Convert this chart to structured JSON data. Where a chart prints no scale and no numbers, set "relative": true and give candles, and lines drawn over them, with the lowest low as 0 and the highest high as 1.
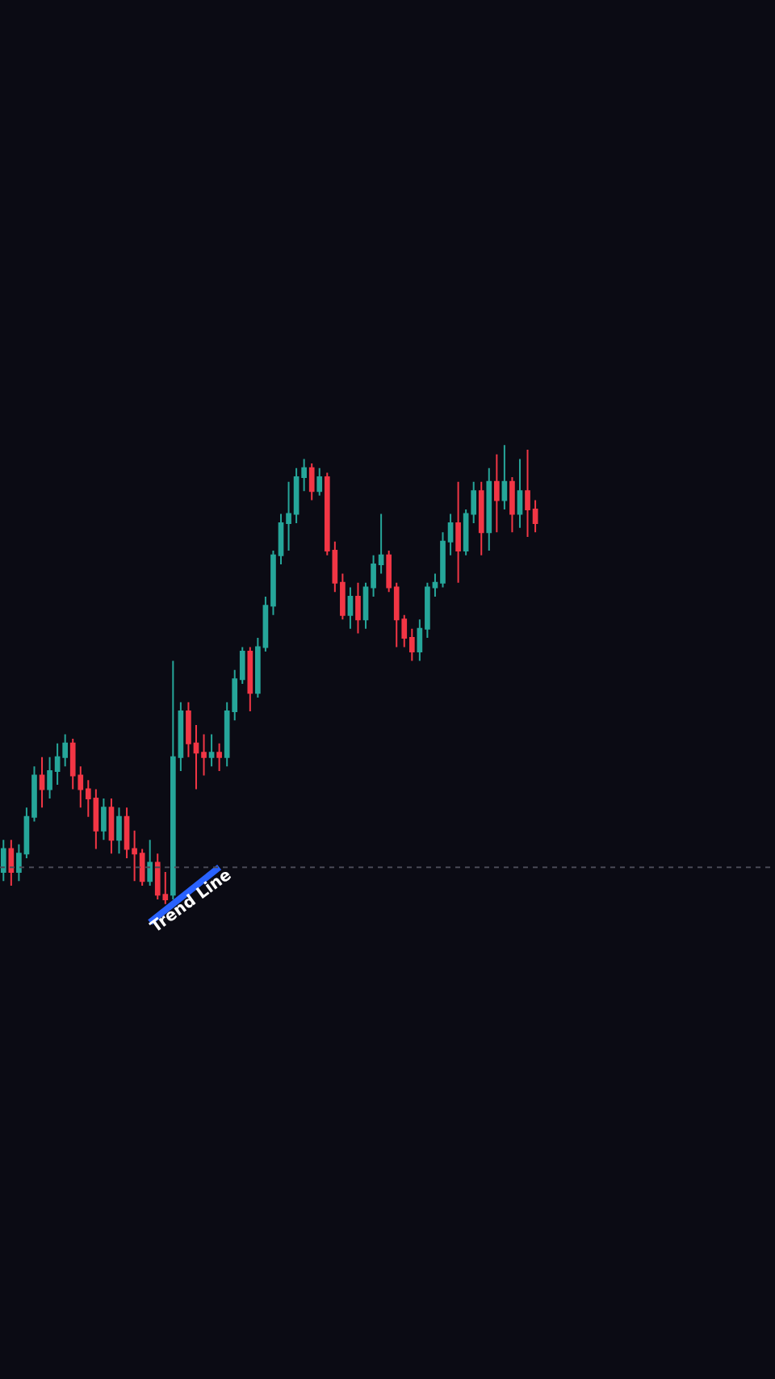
{
  "chart_data": {
    "type": "candlestick",
    "relative": true,
    "categories": [
      null,
      null,
      null,
      null,
      null,
      null,
      null,
      null,
      null,
      null,
      null,
      null,
      null,
      null,
      null,
      null,
      null,
      null,
      null,
      null,
      null,
      null,
      null,
      null,
      null,
      null,
      null,
      null,
      null,
      null,
      null,
      null,
      null,
      null,
      null,
      null,
      null,
      null,
      null,
      null,
      null,
      null,
      null,
      null,
      null,
      null,
      null,
      null,
      null,
      null,
      null,
      null,
      null,
      null,
      null,
      null,
      null,
      null,
      null,
      null,
      null,
      null,
      null,
      null,
      null,
      null,
      null,
      null,
      null,
      null
    ],
    "colors": [
      "#26a69a",
      "#f23645",
      "#26a69a",
      "#26a69a",
      "#26a69a",
      "#f23645",
      "#26a69a",
      "#26a69a",
      "#26a69a",
      "#f23645",
      "#f23645",
      "#f23645",
      "#f23645",
      "#26a69a",
      "#f23645",
      "#26a69a",
      "#f23645",
      "#f23645",
      "#f23645",
      "#26a69a",
      "#f23645",
      "#f23645",
      "#26a69a",
      "#26a69a",
      "#f23645",
      "#f23645",
      "#f23645",
      "#26a69a",
      "#f23645",
      "#26a69a",
      "#26a69a",
      "#26a69a",
      "#f23645",
      "#26a69a",
      "#26a69a",
      "#26a69a",
      "#26a69a",
      "#26a69a",
      "#26a69a",
      "#26a69a",
      "#f23645",
      "#26a69a",
      "#f23645",
      "#f23645",
      "#f23645",
      "#26a69a",
      "#f23645",
      "#26a69a",
      "#26a69a",
      "#26a69a",
      "#f23645",
      "#f23645",
      "#f23645",
      "#f23645",
      "#26a69a",
      "#26a69a",
      "#26a69a",
      "#26a69a",
      "#26a69a",
      "#f23645",
      "#26a69a",
      "#26a69a",
      "#f23645",
      "#26a69a",
      "#f23645",
      "#26a69a",
      "#f23645",
      "#26a69a",
      "#f23645",
      "#f23645"
    ],
    "ohlc": [
      [
        0.07,
        0.14,
        0.05,
        0.12
      ],
      [
        0.12,
        0.14,
        0.04,
        0.07
      ],
      [
        0.07,
        0.13,
        0.05,
        0.11
      ],
      [
        0.11,
        0.21,
        0.1,
        0.19
      ],
      [
        0.19,
        0.3,
        0.18,
        0.28
      ],
      [
        0.28,
        0.32,
        0.21,
        0.25
      ],
      [
        0.25,
        0.32,
        0.23,
        0.29
      ],
      [
        0.29,
        0.35,
        0.26,
        0.32
      ],
      [
        0.32,
        0.37,
        0.3,
        0.35
      ],
      [
        0.35,
        0.36,
        0.25,
        0.28
      ],
      [
        0.28,
        0.3,
        0.21,
        0.25
      ],
      [
        0.25,
        0.27,
        0.19,
        0.23
      ],
      [
        0.23,
        0.25,
        0.12,
        0.16
      ],
      [
        0.16,
        0.23,
        0.14,
        0.21
      ],
      [
        0.21,
        0.23,
        0.11,
        0.14
      ],
      [
        0.14,
        0.21,
        0.11,
        0.19
      ],
      [
        0.19,
        0.21,
        0.1,
        0.12
      ],
      [
        0.12,
        0.16,
        0.05,
        0.11
      ],
      [
        0.11,
        0.12,
        0.04,
        0.05
      ],
      [
        0.05,
        0.14,
        0.04,
        0.09
      ],
      [
        0.09,
        0.11,
        0.01,
        0.02
      ],
      [
        0.02,
        0.07,
        0,
        0.01
      ],
      [
        0.02,
        0.53,
        0.01,
        0.32
      ],
      [
        0.32,
        0.44,
        0.29,
        0.42
      ],
      [
        0.42,
        0.44,
        0.32,
        0.35
      ],
      [
        0.35,
        0.39,
        0.25,
        0.33
      ],
      [
        0.33,
        0.37,
        0.28,
        0.32
      ],
      [
        0.32,
        0.37,
        0.3,
        0.33
      ],
      [
        0.33,
        0.35,
        0.29,
        0.32
      ],
      [
        0.32,
        0.44,
        0.3,
        0.42
      ],
      [
        0.42,
        0.51,
        0.4,
        0.49
      ],
      [
        0.49,
        0.56,
        0.48,
        0.55
      ],
      [
        0.55,
        0.56,
        0.42,
        0.46
      ],
      [
        0.46,
        0.58,
        0.45,
        0.56
      ],
      [
        0.56,
        0.67,
        0.55,
        0.65
      ],
      [
        0.65,
        0.77,
        0.63,
        0.76
      ],
      [
        0.76,
        0.85,
        0.74,
        0.83
      ],
      [
        0.83,
        0.92,
        0.77,
        0.85
      ],
      [
        0.85,
        0.95,
        0.83,
        0.93
      ],
      [
        0.93,
        0.97,
        0.9,
        0.95
      ],
      [
        0.95,
        0.96,
        0.88,
        0.9
      ],
      [
        0.9,
        0.95,
        0.89,
        0.93
      ],
      [
        0.93,
        0.94,
        0.76,
        0.77
      ],
      [
        0.77,
        0.79,
        0.68,
        0.7
      ],
      [
        0.7,
        0.72,
        0.62,
        0.63
      ],
      [
        0.63,
        0.69,
        0.6,
        0.67
      ],
      [
        0.67,
        0.7,
        0.59,
        0.62
      ],
      [
        0.62,
        0.7,
        0.6,
        0.69
      ],
      [
        0.69,
        0.76,
        0.67,
        0.74
      ],
      [
        0.74,
        0.85,
        0.72,
        0.76
      ],
      [
        0.76,
        0.77,
        0.68,
        0.69
      ],
      [
        0.69,
        0.7,
        0.56,
        0.62
      ],
      [
        0.62,
        0.63,
        0.56,
        0.58
      ],
      [
        0.58,
        0.6,
        0.53,
        0.55
      ],
      [
        0.55,
        0.62,
        0.53,
        0.6
      ],
      [
        0.6,
        0.7,
        0.58,
        0.69
      ],
      [
        0.69,
        0.72,
        0.67,
        0.7
      ],
      [
        0.7,
        0.81,
        0.69,
        0.79
      ],
      [
        0.79,
        0.85,
        0.76,
        0.83
      ],
      [
        0.83,
        0.92,
        0.7,
        0.77
      ],
      [
        0.77,
        0.86,
        0.76,
        0.85
      ],
      [
        0.85,
        0.92,
        0.83,
        0.9
      ],
      [
        0.9,
        0.92,
        0.76,
        0.81
      ],
      [
        0.81,
        0.95,
        0.77,
        0.92
      ],
      [
        0.92,
        0.98,
        0.81,
        0.88
      ],
      [
        0.88,
        1.0,
        0.86,
        0.92
      ],
      [
        0.92,
        0.93,
        0.81,
        0.85
      ],
      [
        0.85,
        0.97,
        0.82,
        0.9
      ],
      [
        0.9,
        0.99,
        0.8,
        0.86
      ],
      [
        0.86,
        0.88,
        0.81,
        0.83
      ]
    ],
    "series": [
      {
        "type": "line",
        "color": "#2962ff",
        "values": [
          null,
          null,
          null,
          null,
          null,
          null,
          null,
          null,
          null,
          null,
          null,
          null,
          null,
          null,
          null,
          null,
          null,
          null,
          null,
          -0.04,
          null,
          null,
          null,
          null,
          null,
          null,
          null,
          null,
          0.08,
          null,
          null,
          null,
          null,
          null,
          null,
          null,
          null,
          null,
          null,
          null,
          null,
          null,
          null,
          null,
          null,
          null,
          null,
          null,
          null,
          null,
          null,
          null,
          null,
          null,
          null,
          null,
          null,
          null,
          null,
          null,
          null,
          null,
          null,
          null,
          null,
          null,
          null,
          null,
          null,
          null
        ]
      }
    ],
    "ref_lines": [
      {
        "axis": "y",
        "value": 0.08,
        "color": "#4a4a55",
        "line_style": "dotted"
      }
    ],
    "annotations": [
      "Trend Line"
    ],
    "grid": false
  }
}
